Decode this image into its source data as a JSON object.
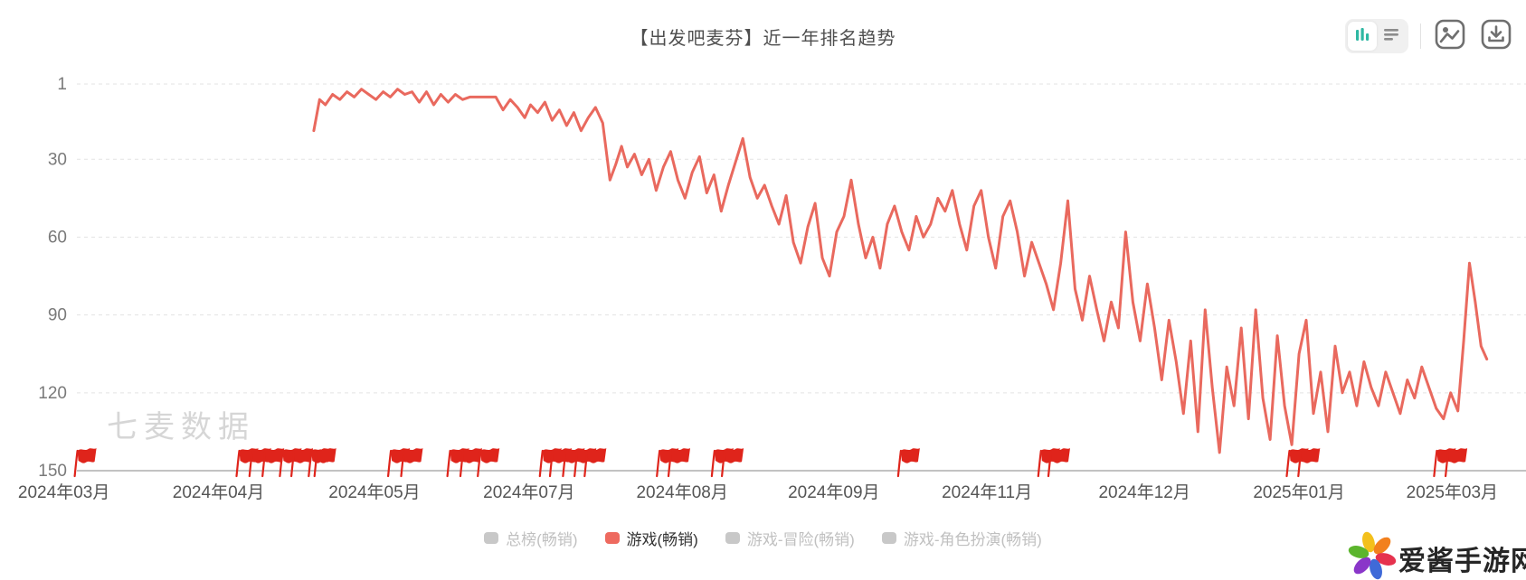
{
  "header": {
    "title": "【出发吧麦芬】近一年排名趋势",
    "controls": {
      "chart_type_toggle": {
        "selected": "trend",
        "options": [
          "trend-bars-icon",
          "list-icon"
        ],
        "accent_color": "#2fb8a3",
        "inactive_color": "#8c8c8c"
      },
      "export_image": "image-icon",
      "download": "download-icon"
    }
  },
  "watermark": "七麦数据",
  "footer_logo": {
    "text": "爱酱手游网",
    "petal_colors": [
      "#f3c01c",
      "#f2801e",
      "#e6324e",
      "#3f6ad8",
      "#8a36c9",
      "#5cb52d"
    ]
  },
  "chart_data": {
    "type": "line",
    "title": "【出发吧麦芬】近一年排名趋势",
    "y_axis": {
      "ticks": [
        1,
        30,
        60,
        90,
        120,
        150
      ],
      "min": 1,
      "max": 150,
      "inverted": true,
      "grid": "dashed"
    },
    "x_axis": {
      "labels": [
        "2024年03月",
        "2024年04月",
        "2024年05月",
        "2024年07月",
        "2024年08月",
        "2024年09月",
        "2024年11月",
        "2024年12月",
        "2025年01月",
        "2025年03月"
      ],
      "label_positions": [
        -0.009,
        0.098,
        0.206,
        0.313,
        0.419,
        0.524,
        0.63,
        0.739,
        0.846,
        0.952
      ]
    },
    "series": [
      {
        "name": "游戏(畅销)",
        "color": "#e9695e",
        "points": [
          [
            0.164,
            19
          ],
          [
            0.168,
            7
          ],
          [
            0.172,
            9
          ],
          [
            0.177,
            5
          ],
          [
            0.182,
            7
          ],
          [
            0.187,
            4
          ],
          [
            0.192,
            6
          ],
          [
            0.197,
            3
          ],
          [
            0.202,
            5
          ],
          [
            0.207,
            7
          ],
          [
            0.212,
            4
          ],
          [
            0.217,
            6
          ],
          [
            0.222,
            3
          ],
          [
            0.227,
            5
          ],
          [
            0.232,
            4
          ],
          [
            0.237,
            8
          ],
          [
            0.242,
            4
          ],
          [
            0.247,
            9
          ],
          [
            0.252,
            5
          ],
          [
            0.257,
            8
          ],
          [
            0.262,
            5
          ],
          [
            0.267,
            7
          ],
          [
            0.272,
            6
          ],
          [
            0.278,
            6
          ],
          [
            0.284,
            6
          ],
          [
            0.29,
            6
          ],
          [
            0.295,
            11
          ],
          [
            0.3,
            7
          ],
          [
            0.305,
            10
          ],
          [
            0.31,
            14
          ],
          [
            0.314,
            9
          ],
          [
            0.319,
            12
          ],
          [
            0.324,
            8
          ],
          [
            0.329,
            15
          ],
          [
            0.334,
            11
          ],
          [
            0.339,
            17
          ],
          [
            0.344,
            12
          ],
          [
            0.349,
            19
          ],
          [
            0.354,
            14
          ],
          [
            0.359,
            10
          ],
          [
            0.364,
            16
          ],
          [
            0.369,
            38
          ],
          [
            0.373,
            32
          ],
          [
            0.377,
            25
          ],
          [
            0.381,
            33
          ],
          [
            0.386,
            28
          ],
          [
            0.391,
            36
          ],
          [
            0.396,
            30
          ],
          [
            0.401,
            42
          ],
          [
            0.406,
            33
          ],
          [
            0.411,
            27
          ],
          [
            0.416,
            38
          ],
          [
            0.421,
            45
          ],
          [
            0.426,
            35
          ],
          [
            0.431,
            29
          ],
          [
            0.436,
            43
          ],
          [
            0.441,
            36
          ],
          [
            0.446,
            50
          ],
          [
            0.451,
            40
          ],
          [
            0.456,
            31
          ],
          [
            0.461,
            22
          ],
          [
            0.466,
            37
          ],
          [
            0.471,
            45
          ],
          [
            0.476,
            40
          ],
          [
            0.481,
            48
          ],
          [
            0.486,
            55
          ],
          [
            0.491,
            44
          ],
          [
            0.496,
            62
          ],
          [
            0.501,
            70
          ],
          [
            0.506,
            56
          ],
          [
            0.511,
            47
          ],
          [
            0.516,
            68
          ],
          [
            0.521,
            75
          ],
          [
            0.526,
            58
          ],
          [
            0.531,
            52
          ],
          [
            0.536,
            38
          ],
          [
            0.541,
            55
          ],
          [
            0.546,
            68
          ],
          [
            0.551,
            60
          ],
          [
            0.556,
            72
          ],
          [
            0.561,
            55
          ],
          [
            0.566,
            48
          ],
          [
            0.571,
            58
          ],
          [
            0.576,
            65
          ],
          [
            0.581,
            52
          ],
          [
            0.586,
            60
          ],
          [
            0.591,
            55
          ],
          [
            0.596,
            45
          ],
          [
            0.601,
            50
          ],
          [
            0.606,
            42
          ],
          [
            0.611,
            55
          ],
          [
            0.616,
            65
          ],
          [
            0.621,
            48
          ],
          [
            0.626,
            42
          ],
          [
            0.631,
            60
          ],
          [
            0.636,
            72
          ],
          [
            0.641,
            52
          ],
          [
            0.646,
            46
          ],
          [
            0.651,
            58
          ],
          [
            0.656,
            75
          ],
          [
            0.661,
            62
          ],
          [
            0.666,
            70
          ],
          [
            0.671,
            78
          ],
          [
            0.676,
            88
          ],
          [
            0.681,
            70
          ],
          [
            0.686,
            46
          ],
          [
            0.691,
            80
          ],
          [
            0.696,
            92
          ],
          [
            0.701,
            75
          ],
          [
            0.706,
            88
          ],
          [
            0.711,
            100
          ],
          [
            0.716,
            85
          ],
          [
            0.721,
            95
          ],
          [
            0.726,
            58
          ],
          [
            0.731,
            85
          ],
          [
            0.736,
            100
          ],
          [
            0.741,
            78
          ],
          [
            0.746,
            95
          ],
          [
            0.751,
            115
          ],
          [
            0.756,
            92
          ],
          [
            0.761,
            108
          ],
          [
            0.766,
            128
          ],
          [
            0.771,
            100
          ],
          [
            0.776,
            135
          ],
          [
            0.781,
            88
          ],
          [
            0.786,
            118
          ],
          [
            0.791,
            143
          ],
          [
            0.796,
            110
          ],
          [
            0.801,
            125
          ],
          [
            0.806,
            95
          ],
          [
            0.811,
            130
          ],
          [
            0.816,
            88
          ],
          [
            0.821,
            122
          ],
          [
            0.826,
            138
          ],
          [
            0.831,
            98
          ],
          [
            0.836,
            125
          ],
          [
            0.841,
            140
          ],
          [
            0.846,
            105
          ],
          [
            0.851,
            92
          ],
          [
            0.856,
            128
          ],
          [
            0.861,
            112
          ],
          [
            0.866,
            135
          ],
          [
            0.871,
            102
          ],
          [
            0.876,
            120
          ],
          [
            0.881,
            112
          ],
          [
            0.886,
            125
          ],
          [
            0.891,
            108
          ],
          [
            0.896,
            118
          ],
          [
            0.901,
            125
          ],
          [
            0.906,
            112
          ],
          [
            0.911,
            120
          ],
          [
            0.916,
            128
          ],
          [
            0.921,
            115
          ],
          [
            0.926,
            122
          ],
          [
            0.931,
            110
          ],
          [
            0.936,
            118
          ],
          [
            0.941,
            126
          ],
          [
            0.946,
            130
          ],
          [
            0.951,
            120
          ],
          [
            0.956,
            127
          ],
          [
            0.96,
            100
          ],
          [
            0.964,
            70
          ],
          [
            0.968,
            85
          ],
          [
            0.972,
            102
          ],
          [
            0.976,
            107
          ]
        ]
      }
    ],
    "flags": {
      "color": "#df241b",
      "positions": [
        0.001,
        0.113,
        0.122,
        0.131,
        0.143,
        0.151,
        0.163,
        0.167,
        0.218,
        0.227,
        0.259,
        0.268,
        0.28,
        0.323,
        0.33,
        0.339,
        0.347,
        0.354,
        0.404,
        0.412,
        0.442,
        0.449,
        0.571,
        0.668,
        0.675,
        0.84,
        0.848,
        0.942,
        0.95
      ]
    },
    "legend": {
      "position": "bottom",
      "items": [
        {
          "label": "总榜(畅销)",
          "color": "#c8c8c8",
          "text_color": "#c0c0c0",
          "active": false
        },
        {
          "label": "游戏(畅销)",
          "color": "#ee6a5f",
          "text_color": "#333333",
          "active": true
        },
        {
          "label": "游戏-冒险(畅销)",
          "color": "#c8c8c8",
          "text_color": "#c0c0c0",
          "active": false
        },
        {
          "label": "游戏-角色扮演(畅销)",
          "color": "#c8c8c8",
          "text_color": "#c0c0c0",
          "active": false
        }
      ]
    }
  }
}
